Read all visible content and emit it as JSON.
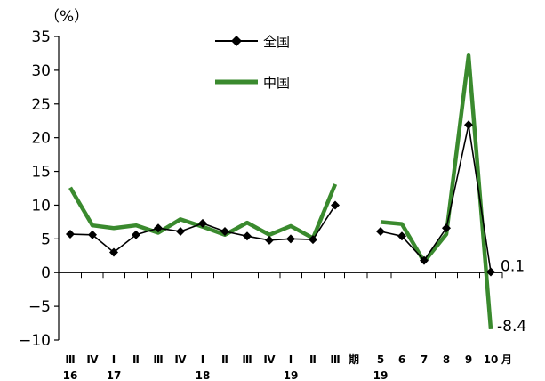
{
  "chart_data": {
    "type": "line",
    "ylabel": "（%）",
    "ylim": [
      -10,
      35
    ],
    "yticks": [
      35,
      30,
      25,
      20,
      15,
      10,
      5,
      0,
      -5,
      -10
    ],
    "ytick_labels": [
      "35",
      "30",
      "25",
      "20",
      "15",
      "10",
      "5",
      "0",
      "−5",
      "−10"
    ],
    "grid": false,
    "legend_position": "top-center",
    "x_tick_labels": [
      "Ⅲ",
      "Ⅳ",
      "Ⅰ",
      "Ⅱ",
      "Ⅲ",
      "Ⅳ",
      "Ⅰ",
      "Ⅱ",
      "Ⅲ",
      "Ⅳ",
      "Ⅰ",
      "Ⅱ",
      "Ⅲ",
      "期",
      "5",
      "6",
      "7",
      "8",
      "9",
      "10",
      "月"
    ],
    "x_year_labels": [
      {
        "after_tick": 0,
        "label": "16"
      },
      {
        "after_tick": 2,
        "label": "17"
      },
      {
        "after_tick": 6,
        "label": "18"
      },
      {
        "after_tick": 10,
        "label": "19"
      },
      {
        "after_tick": 14,
        "label": "19"
      }
    ],
    "series": [
      {
        "name": "全国",
        "color": "#000000",
        "marker": "diamond",
        "segments": [
          [
            5.7,
            5.6,
            3.0,
            5.6,
            6.6,
            6.1,
            7.3,
            6.1,
            5.4,
            4.8,
            5.0,
            4.9,
            10.0
          ],
          [
            6.1,
            5.4,
            1.8,
            6.6,
            21.9,
            0.1
          ]
        ],
        "end_label": "0.1"
      },
      {
        "name": "中国",
        "color": "#3a8a2e",
        "marker": "none",
        "segments": [
          [
            12.6,
            7.0,
            6.6,
            7.0,
            5.9,
            7.9,
            6.8,
            5.6,
            7.4,
            5.6,
            6.9,
            5.1,
            13.1
          ],
          [
            7.5,
            7.2,
            1.6,
            5.7,
            32.2,
            -8.4
          ]
        ],
        "end_label": "-8.4"
      }
    ]
  }
}
